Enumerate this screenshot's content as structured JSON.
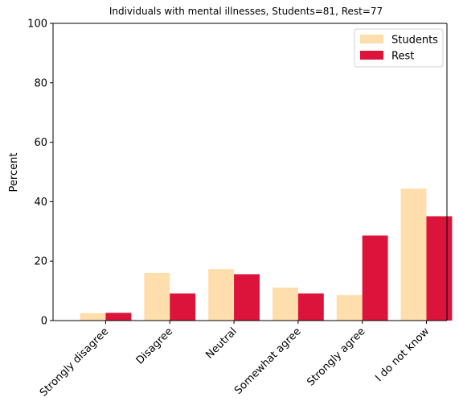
{
  "chart_data": {
    "type": "bar",
    "title": "Individuals with mental illnesses, Students=81, Rest=77",
    "xlabel": "",
    "ylabel": "Percent",
    "ylim": [
      0,
      100
    ],
    "yticks": [
      0,
      20,
      40,
      60,
      80,
      100
    ],
    "categories": [
      "Strongly disagree",
      "Disagree",
      "Neutral",
      "Somewhat agree",
      "Strongly agree",
      "I do not know"
    ],
    "series": [
      {
        "name": "Students",
        "color": "#FFDEAD",
        "values": [
          2.5,
          16.0,
          17.3,
          11.1,
          8.6,
          44.4
        ]
      },
      {
        "name": "Rest",
        "color": "#DC143C",
        "values": [
          2.6,
          9.1,
          15.6,
          9.1,
          28.6,
          35.1
        ]
      }
    ],
    "grid": false,
    "legend_position": "top-right"
  }
}
